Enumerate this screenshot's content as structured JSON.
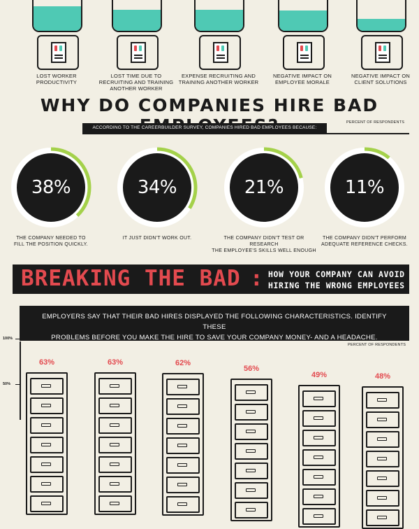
{
  "colors": {
    "background": "#f2efe4",
    "ink": "#1a1a1a",
    "accent_red": "#e34a4f",
    "accent_green": "#a4d14a",
    "water": "#4fc9b4"
  },
  "impacts": [
    {
      "label_lines": [
        "LOST WORKER",
        "PRODUCTIVITY"
      ],
      "water_level": 0.8
    },
    {
      "label_lines": [
        "LOST TIME DUE TO",
        "RECRUITING AND TRAINING",
        "ANOTHER WORKER"
      ],
      "water_level": 0.68
    },
    {
      "label_lines": [
        "EXPENSE RECRUITING AND",
        "TRAINING ANOTHER WORKER"
      ],
      "water_level": 0.68
    },
    {
      "label_lines": [
        "NEGATIVE IMPACT ON",
        "EMPLOYEE MORALE"
      ],
      "water_level": 0.65
    },
    {
      "label_lines": [
        "NEGATIVE IMPACT ON",
        "CLIENT SOLUTIONS"
      ],
      "water_level": 0.38
    }
  ],
  "why": {
    "headline": "WHY DO COMPANIES HIRE BAD EMPLOYEES?",
    "survey_note": "ACCORDING TO THE CAREERBUILDER SURVEY, COMPANIES HIRED BAD EMPLOYEES BECAUSE:",
    "percent_label": "PERCENT OF RESPONDENTS"
  },
  "chart_data": [
    {
      "type": "pie",
      "categories": [
        "THE COMPANY NEEDED TO FILL THE POSITION QUICKLY.",
        "IT JUST DIDN'T WORK OUT.",
        "THE COMPANY DIDN'T TEST OR RESEARCH THE EMPLOYEE'S SKILLS WELL ENOUGH",
        "THE COMPANY DIDN'T PERFORM ADEQUATE REFERENCE CHECKS."
      ],
      "values": [
        38,
        34,
        21,
        11
      ],
      "display": [
        "38%",
        "34%",
        "21%",
        "11%"
      ],
      "label_lines": [
        [
          "THE COMPANY NEEDED TO",
          "FILL THE POSITION QUICKLY."
        ],
        [
          "IT JUST DIDN'T WORK OUT."
        ],
        [
          "THE COMPANY DIDN'T TEST OR RESEARCH",
          "THE EMPLOYEE'S SKILLS WELL ENOUGH"
        ],
        [
          "THE COMPANY DIDN'T PERFORM",
          "ADEQUATE REFERENCE CHECKS."
        ]
      ],
      "ylabel": "PERCENT OF RESPONDENTS",
      "ylim": [
        0,
        100
      ]
    },
    {
      "type": "bar",
      "values": [
        63,
        63,
        62,
        56,
        49,
        48
      ],
      "display": [
        "63%",
        "63%",
        "62%",
        "56%",
        "49%",
        "48%"
      ],
      "ylim": [
        0,
        100
      ],
      "ticks": [
        "100%",
        "50%"
      ],
      "tick_values": [
        100,
        50
      ],
      "ylabel": "PERCENT OF RESPONDENTS"
    }
  ],
  "banner": {
    "title": "BREAKING THE BAD",
    "colon": ":",
    "subtitle_line1": "HOW YOUR COMPANY CAN AVOID",
    "subtitle_line2": "HIRING THE WRONG EMPLOYEES"
  },
  "characteristics": {
    "line1": "EMPLOYERS SAY THAT THEIR BAD HIRES DISPLAYED THE FOLLOWING CHARACTERISTICS. IDENTIFY THESE",
    "line2": "PROBLEMS BEFORE YOU MAKE THE HIRE TO SAVE YOUR COMPANY MONEY- AND A HEADACHE.",
    "percent_label": "PERCENT OF RESPONDENTS"
  }
}
